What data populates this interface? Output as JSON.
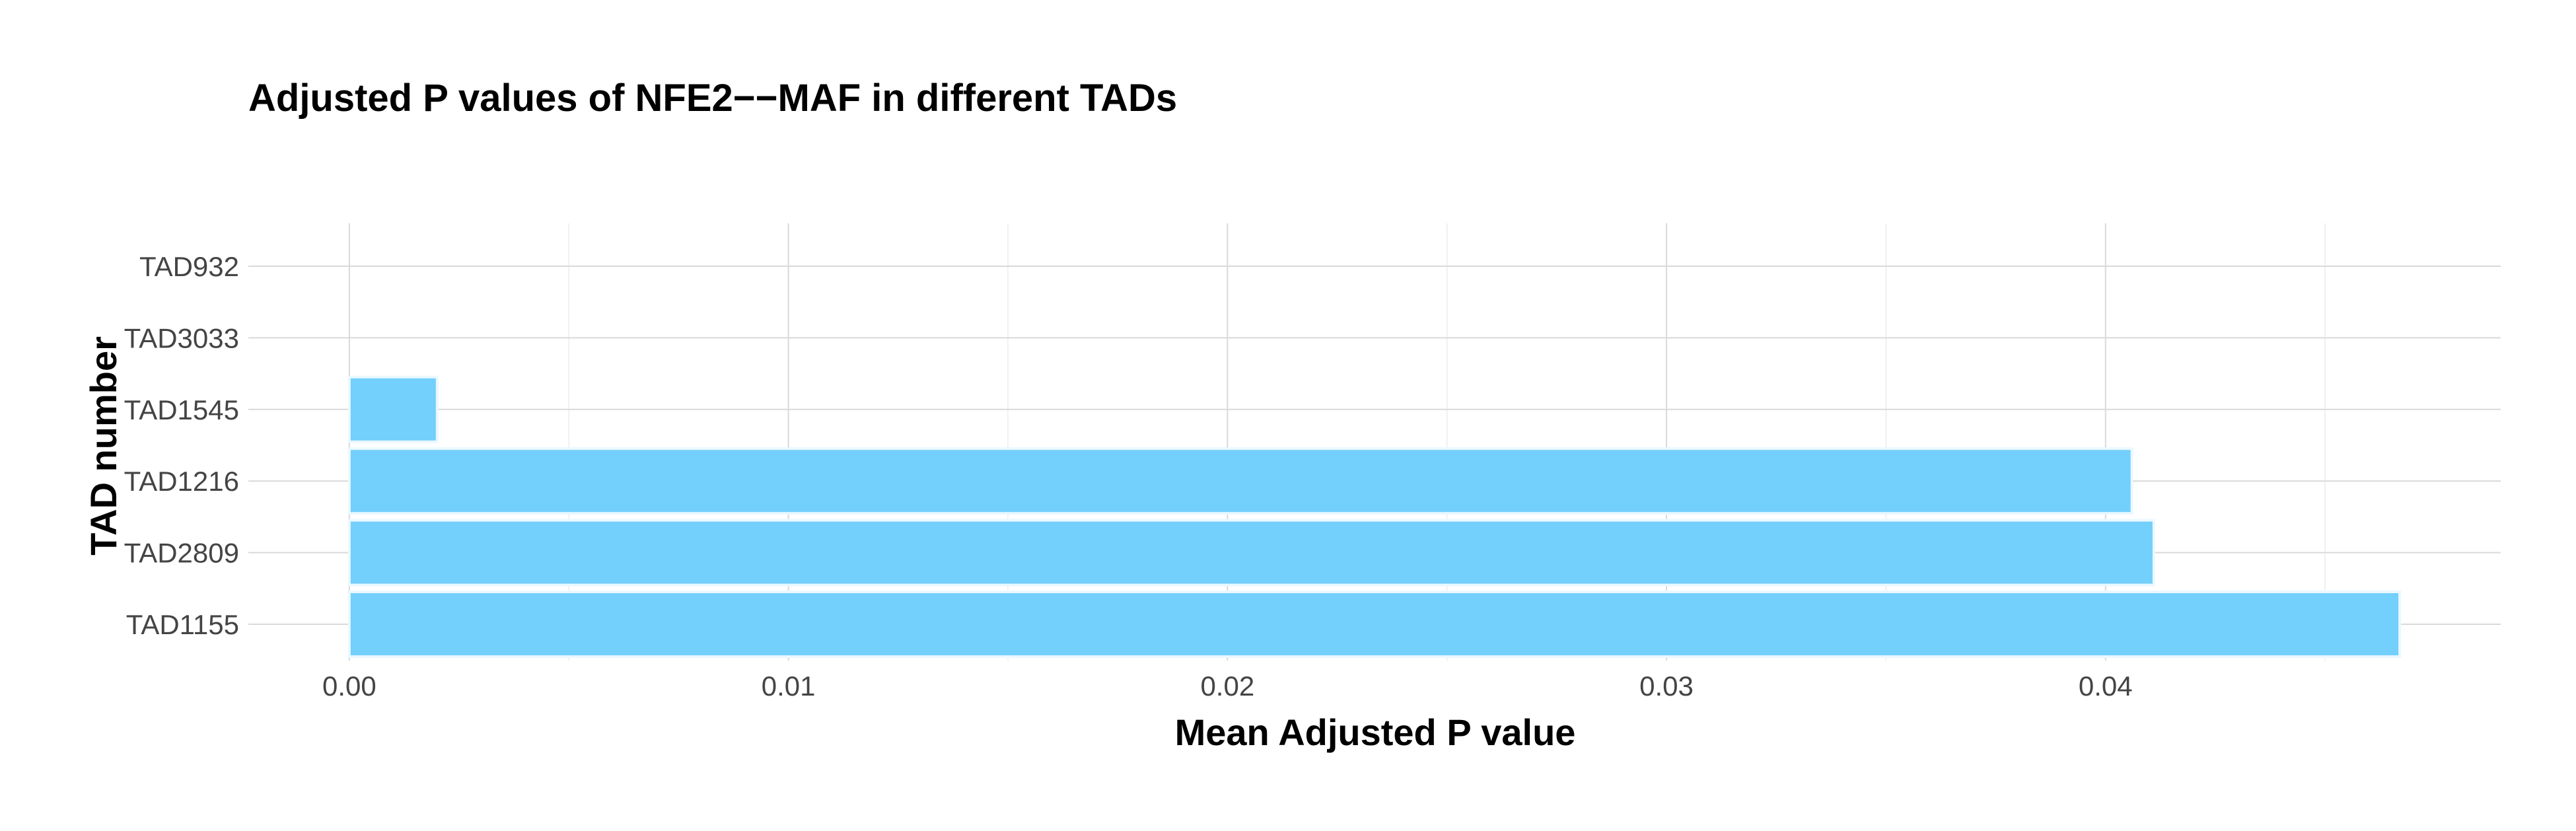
{
  "chart_data": {
    "type": "bar",
    "orientation": "horizontal",
    "title": "Adjusted P values of NFE2−−MAF in different TADs",
    "xlabel": "Mean Adjusted P value",
    "ylabel": "TAD number",
    "categories": [
      "TAD932",
      "TAD3033",
      "TAD1545",
      "TAD1216",
      "TAD2809",
      "TAD1155"
    ],
    "values": [
      0,
      0,
      0.002,
      0.0406,
      0.0411,
      0.0467
    ],
    "xlim": [
      -0.0023,
      0.049
    ],
    "xticks": [
      0,
      0.01,
      0.02,
      0.03,
      0.04
    ],
    "xtick_labels": [
      "0.00",
      "0.01",
      "0.02",
      "0.03",
      "0.04"
    ],
    "grid": true,
    "legend": "none",
    "bar_color": "#73CFFB"
  }
}
